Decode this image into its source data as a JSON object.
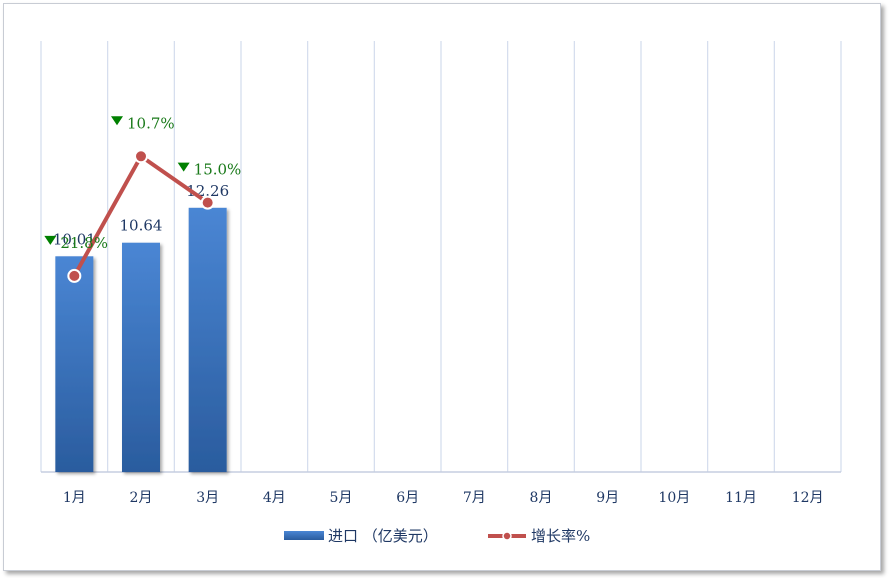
{
  "chart_data": {
    "type": "bar",
    "categories": [
      "1月",
      "2月",
      "3月",
      "4月",
      "5月",
      "6月",
      "7月",
      "8月",
      "9月",
      "10月",
      "11月",
      "12月"
    ],
    "series": [
      {
        "name": "进口（亿美元）",
        "type": "bar",
        "values": [
          10.01,
          10.64,
          12.26,
          null,
          null,
          null,
          null,
          null,
          null,
          null,
          null,
          null
        ],
        "labels": [
          "10.01",
          "10.64",
          "12.26"
        ],
        "color": "#3a6fbf"
      },
      {
        "name": "增长率%",
        "type": "line",
        "values": [
          -21.8,
          -10.7,
          -15.0,
          null,
          null,
          null,
          null,
          null,
          null,
          null,
          null,
          null
        ],
        "labels": [
          "21.8%",
          "10.7%",
          "15.0%"
        ],
        "color": "#c0504d",
        "label_color": "#008000",
        "marker": "down-triangle"
      }
    ],
    "ylim": [
      0,
      20
    ],
    "rate_ylim": [
      -40,
      0
    ],
    "grid": "vertical",
    "legend": "bottom"
  },
  "legend": {
    "bar_label": "进口 （亿美元）",
    "line_label": "增长率%"
  }
}
